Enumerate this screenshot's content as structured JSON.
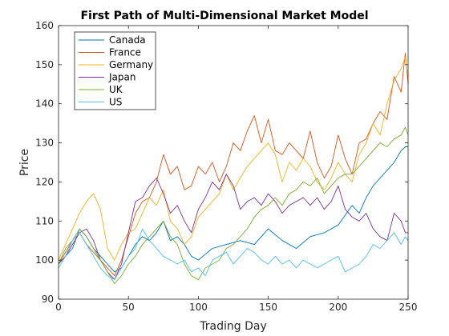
{
  "chart_data": {
    "type": "line",
    "title": "First Path of Multi-Dimensional Market Model",
    "xlabel": "Trading Day",
    "ylabel": "Price",
    "xlim": [
      0,
      250
    ],
    "ylim": [
      90,
      160
    ],
    "xticks": [
      0,
      50,
      100,
      150,
      200,
      250
    ],
    "yticks": [
      90,
      100,
      110,
      120,
      130,
      140,
      150,
      160
    ],
    "grid": false,
    "legend_position": "top-left",
    "series": [
      {
        "name": "Canada",
        "color": "#0072BD",
        "x": [
          0,
          5,
          10,
          15,
          20,
          25,
          30,
          35,
          40,
          45,
          50,
          55,
          60,
          65,
          70,
          75,
          80,
          85,
          90,
          95,
          100,
          110,
          120,
          130,
          140,
          150,
          160,
          170,
          180,
          190,
          200,
          210,
          215,
          220,
          225,
          230,
          235,
          240,
          245,
          248,
          250
        ],
        "values": [
          99,
          101,
          103,
          108,
          106,
          103,
          101,
          99,
          97,
          98,
          101,
          104,
          106,
          105,
          107,
          110,
          105,
          106,
          104,
          101,
          100,
          103,
          104,
          105,
          104,
          108,
          105,
          103,
          106,
          107,
          109,
          114,
          112,
          116,
          119,
          121,
          123,
          125,
          128,
          129,
          129
        ]
      },
      {
        "name": "France",
        "color": "#D95319",
        "x": [
          0,
          5,
          10,
          15,
          20,
          25,
          30,
          35,
          40,
          45,
          50,
          55,
          60,
          65,
          70,
          75,
          80,
          85,
          90,
          95,
          100,
          105,
          110,
          115,
          120,
          125,
          130,
          135,
          140,
          145,
          150,
          155,
          160,
          165,
          170,
          175,
          180,
          185,
          190,
          195,
          200,
          205,
          210,
          215,
          220,
          225,
          230,
          235,
          240,
          245,
          248,
          250
        ],
        "values": [
          99,
          102,
          105,
          107,
          104,
          102,
          100,
          98,
          96,
          100,
          106,
          112,
          115,
          116,
          120,
          127,
          122,
          124,
          118,
          119,
          124,
          122,
          125,
          120,
          124,
          130,
          128,
          133,
          137,
          130,
          136,
          128,
          127,
          130,
          128,
          126,
          133,
          125,
          121,
          124,
          132,
          126,
          122,
          130,
          131,
          135,
          138,
          136,
          147,
          143,
          153,
          145
        ]
      },
      {
        "name": "Germany",
        "color": "#EDB120",
        "x": [
          0,
          5,
          10,
          15,
          20,
          25,
          30,
          35,
          40,
          45,
          50,
          55,
          60,
          65,
          70,
          75,
          80,
          85,
          90,
          95,
          100,
          105,
          110,
          115,
          120,
          125,
          130,
          135,
          140,
          145,
          150,
          155,
          160,
          165,
          170,
          175,
          180,
          185,
          190,
          195,
          200,
          205,
          210,
          215,
          220,
          225,
          230,
          235,
          240,
          245,
          248,
          250
        ],
        "values": [
          100,
          104,
          108,
          112,
          115,
          117,
          113,
          103,
          100,
          104,
          107,
          108,
          112,
          116,
          114,
          118,
          110,
          108,
          104,
          106,
          111,
          113,
          115,
          117,
          122,
          118,
          121,
          124,
          126,
          128,
          130,
          127,
          120,
          125,
          123,
          126,
          124,
          120,
          118,
          121,
          125,
          122,
          120,
          127,
          130,
          135,
          132,
          140,
          146,
          149,
          152,
          147
        ]
      },
      {
        "name": "Japan",
        "color": "#7E2F8E",
        "x": [
          0,
          5,
          10,
          15,
          20,
          25,
          30,
          35,
          40,
          45,
          50,
          55,
          60,
          65,
          70,
          75,
          80,
          85,
          90,
          95,
          100,
          105,
          110,
          115,
          120,
          125,
          130,
          135,
          140,
          145,
          150,
          155,
          160,
          165,
          170,
          175,
          180,
          185,
          190,
          195,
          200,
          205,
          210,
          215,
          220,
          225,
          230,
          235,
          240,
          245,
          248,
          250
        ],
        "values": [
          99,
          101,
          104,
          107,
          108,
          105,
          100,
          97,
          95,
          99,
          107,
          115,
          116,
          119,
          121,
          117,
          112,
          114,
          110,
          107,
          113,
          116,
          120,
          118,
          122,
          119,
          113,
          115,
          116,
          114,
          117,
          115,
          112,
          114,
          115,
          116,
          114,
          116,
          113,
          115,
          119,
          113,
          111,
          110,
          112,
          108,
          106,
          105,
          112,
          110,
          107,
          107
        ]
      },
      {
        "name": "UK",
        "color": "#77AC30",
        "x": [
          0,
          5,
          10,
          15,
          20,
          25,
          30,
          35,
          40,
          45,
          50,
          55,
          60,
          65,
          70,
          75,
          80,
          85,
          90,
          95,
          100,
          105,
          110,
          115,
          120,
          125,
          130,
          135,
          140,
          145,
          150,
          155,
          160,
          165,
          170,
          175,
          180,
          185,
          190,
          195,
          200,
          205,
          210,
          215,
          220,
          225,
          230,
          235,
          240,
          245,
          248,
          250
        ],
        "values": [
          99,
          103,
          105,
          108,
          106,
          103,
          100,
          97,
          94,
          96,
          99,
          101,
          104,
          106,
          108,
          110,
          106,
          104,
          99,
          96,
          95,
          98,
          99,
          100,
          103,
          104,
          106,
          108,
          111,
          113,
          114,
          116,
          114,
          117,
          118,
          120,
          119,
          121,
          117,
          119,
          121,
          122,
          122,
          124,
          126,
          128,
          130,
          129,
          131,
          132,
          134,
          132
        ]
      },
      {
        "name": "US",
        "color": "#4DBEEE",
        "x": [
          0,
          5,
          10,
          15,
          20,
          25,
          30,
          35,
          40,
          45,
          50,
          55,
          60,
          65,
          70,
          75,
          80,
          85,
          90,
          95,
          100,
          105,
          110,
          115,
          120,
          125,
          130,
          135,
          140,
          145,
          150,
          155,
          160,
          165,
          170,
          175,
          180,
          185,
          190,
          195,
          200,
          205,
          210,
          215,
          220,
          225,
          230,
          235,
          240,
          245,
          248,
          250
        ],
        "values": [
          98,
          101,
          105,
          107,
          104,
          101,
          98,
          96,
          95,
          98,
          101,
          103,
          108,
          105,
          103,
          101,
          100,
          99,
          100,
          97,
          98,
          96,
          100,
          101,
          102,
          99,
          101,
          103,
          102,
          100,
          99,
          101,
          99,
          100,
          98,
          100,
          99,
          98,
          99,
          100,
          101,
          97,
          98,
          99,
          101,
          104,
          103,
          105,
          107,
          104,
          106,
          105
        ]
      }
    ]
  }
}
